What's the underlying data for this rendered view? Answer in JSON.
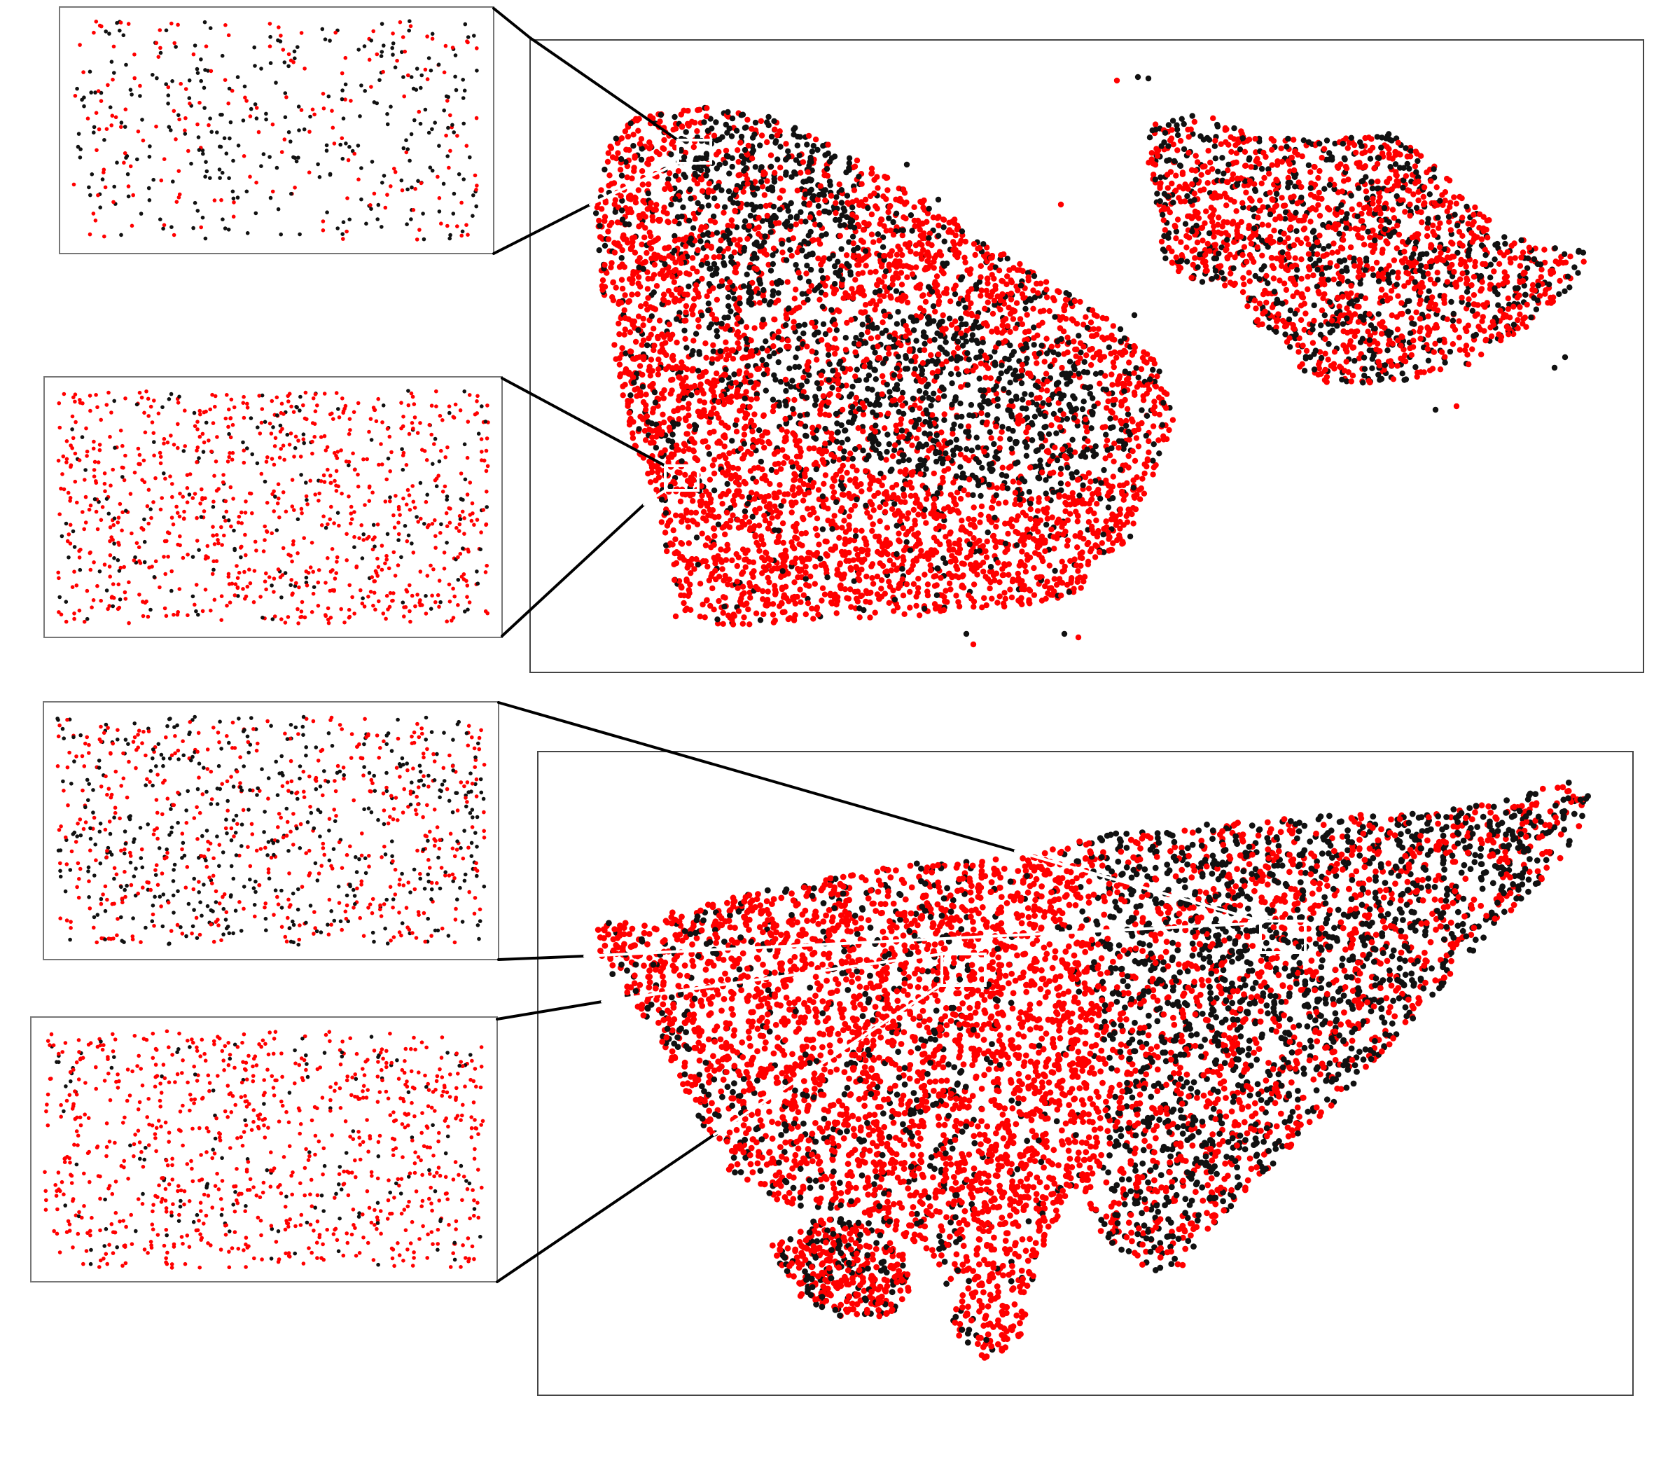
{
  "colors": {
    "background": "#ffffff",
    "cell_positive": "#ff0000",
    "cell_negative": "#111111",
    "panel_border": "#444444",
    "callout_line_dark": "#000000",
    "highlight_box": "#ffffff"
  },
  "figure": {
    "panel_count": 2,
    "inset_count": 4,
    "point_classes": [
      "red",
      "black"
    ]
  },
  "panels": [
    {
      "position": "top",
      "description_label": "",
      "insets": [
        {
          "position": "top-left",
          "red_fraction": 0.45,
          "density": 0.55
        },
        {
          "position": "middle-left",
          "red_fraction": 0.82,
          "density": 1.0
        }
      ]
    },
    {
      "position": "bottom",
      "description_label": "",
      "insets": [
        {
          "position": "upper-left",
          "red_fraction": 0.55,
          "density": 1.0
        },
        {
          "position": "lower-left",
          "red_fraction": 0.85,
          "density": 1.0
        }
      ]
    }
  ]
}
